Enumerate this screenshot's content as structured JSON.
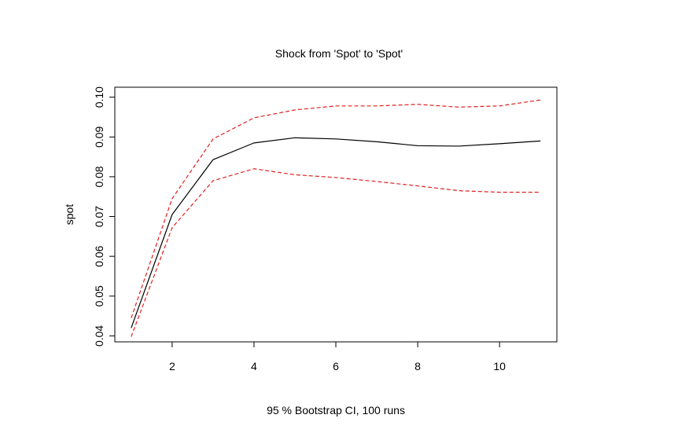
{
  "chart_data": {
    "type": "line",
    "title": "Shock from 'Spot' to 'Spot'",
    "xlabel": "95 % Bootstrap CI,  100 runs",
    "ylabel": "spot",
    "xlim": [
      0.6,
      11.4
    ],
    "ylim": [
      0.0385,
      0.1025
    ],
    "x_ticks": [
      2,
      4,
      6,
      8,
      10
    ],
    "x_tick_labels": [
      "2",
      "4",
      "6",
      "8",
      "10"
    ],
    "y_ticks": [
      0.04,
      0.05,
      0.06,
      0.07,
      0.08,
      0.09,
      0.1
    ],
    "y_tick_labels": [
      "0.04",
      "0.05",
      "0.06",
      "0.07",
      "0.08",
      "0.09",
      "0.10"
    ],
    "grid": false,
    "x": [
      1,
      2,
      3,
      4,
      5,
      6,
      7,
      8,
      9,
      10,
      11
    ],
    "series": [
      {
        "role": "response",
        "color": "#000000",
        "dash": "solid",
        "values": [
          0.042,
          0.0705,
          0.0843,
          0.0885,
          0.0898,
          0.0895,
          0.0888,
          0.0878,
          0.0877,
          0.0883,
          0.089
        ]
      },
      {
        "role": "upper",
        "color": "#e0201f",
        "dash": "dashed",
        "values": [
          0.0445,
          0.0745,
          0.0895,
          0.0948,
          0.0968,
          0.0978,
          0.0978,
          0.0982,
          0.0975,
          0.0978,
          0.0993
        ]
      },
      {
        "role": "lower",
        "color": "#e0201f",
        "dash": "dashed",
        "values": [
          0.0398,
          0.0672,
          0.079,
          0.082,
          0.0805,
          0.0798,
          0.0788,
          0.0777,
          0.0765,
          0.0761,
          0.0761
        ]
      }
    ]
  }
}
